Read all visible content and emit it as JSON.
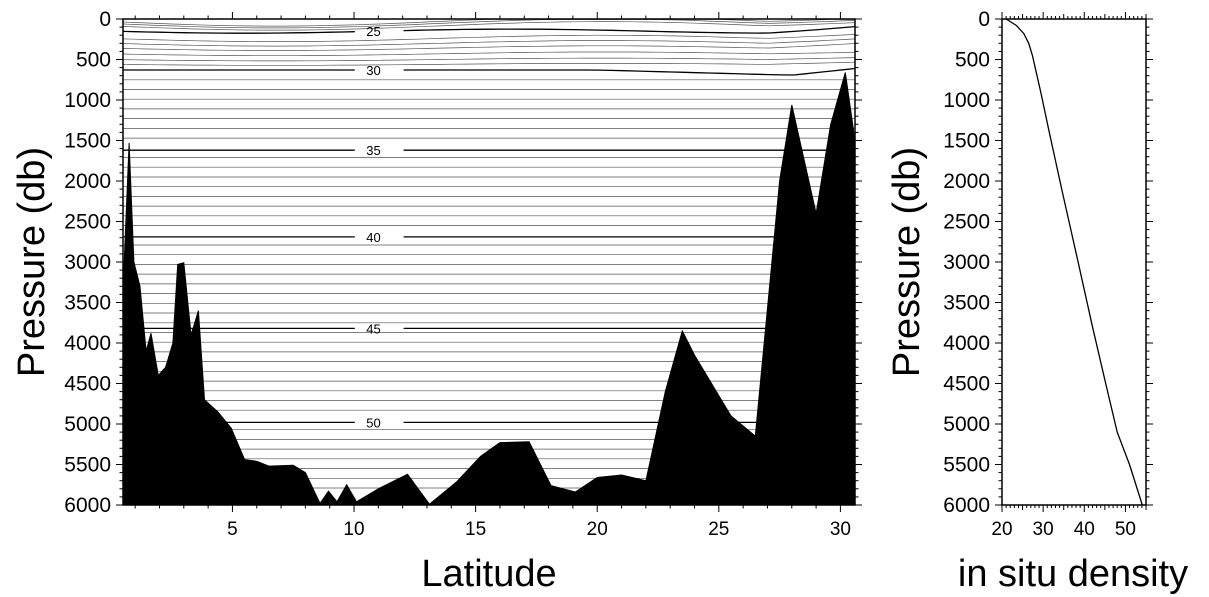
{
  "chart_data": [
    {
      "type": "section",
      "xlabel": "Latitude",
      "ylabel": "Pressure (db)",
      "xlim": [
        0.5,
        30.6
      ],
      "ylim": [
        6000,
        0
      ],
      "x_ticks": [
        5,
        10,
        15,
        20,
        25,
        30
      ],
      "y_ticks": [
        0,
        500,
        1000,
        1500,
        2000,
        2500,
        3000,
        3500,
        4000,
        4500,
        5000,
        5500,
        6000
      ],
      "contour_labels": [
        {
          "label": "25",
          "value": 25,
          "pressure": 150
        },
        {
          "label": "30",
          "value": 30,
          "pressure": 630
        },
        {
          "label": "35",
          "value": 35,
          "pressure": 1620
        },
        {
          "label": "40",
          "value": 40,
          "pressure": 2690
        },
        {
          "label": "45",
          "value": 45,
          "pressure": 3820
        },
        {
          "label": "50",
          "value": 50,
          "pressure": 4980
        }
      ],
      "bottom_profile": [
        {
          "lat": 0.5,
          "p": 6000
        },
        {
          "lat": 0.5,
          "p": 3350
        },
        {
          "lat": 0.75,
          "p": 1530
        },
        {
          "lat": 0.95,
          "p": 3000
        },
        {
          "lat": 1.2,
          "p": 3300
        },
        {
          "lat": 1.45,
          "p": 4100
        },
        {
          "lat": 1.65,
          "p": 3880
        },
        {
          "lat": 1.95,
          "p": 4400
        },
        {
          "lat": 2.25,
          "p": 4300
        },
        {
          "lat": 2.55,
          "p": 4000
        },
        {
          "lat": 2.75,
          "p": 3030
        },
        {
          "lat": 3.0,
          "p": 3010
        },
        {
          "lat": 3.3,
          "p": 3900
        },
        {
          "lat": 3.6,
          "p": 3600
        },
        {
          "lat": 3.85,
          "p": 4700
        },
        {
          "lat": 4.4,
          "p": 4850
        },
        {
          "lat": 4.95,
          "p": 5050
        },
        {
          "lat": 5.5,
          "p": 5440
        },
        {
          "lat": 6.0,
          "p": 5460
        },
        {
          "lat": 6.5,
          "p": 5520
        },
        {
          "lat": 7.5,
          "p": 5510
        },
        {
          "lat": 8.0,
          "p": 5600
        },
        {
          "lat": 8.6,
          "p": 5980
        },
        {
          "lat": 8.95,
          "p": 5830
        },
        {
          "lat": 9.3,
          "p": 5960
        },
        {
          "lat": 9.7,
          "p": 5750
        },
        {
          "lat": 10.1,
          "p": 5960
        },
        {
          "lat": 11.0,
          "p": 5800
        },
        {
          "lat": 12.2,
          "p": 5620
        },
        {
          "lat": 13.1,
          "p": 5990
        },
        {
          "lat": 14.2,
          "p": 5720
        },
        {
          "lat": 15.2,
          "p": 5400
        },
        {
          "lat": 16.0,
          "p": 5230
        },
        {
          "lat": 17.2,
          "p": 5220
        },
        {
          "lat": 18.1,
          "p": 5760
        },
        {
          "lat": 19.1,
          "p": 5840
        },
        {
          "lat": 20.0,
          "p": 5660
        },
        {
          "lat": 21.0,
          "p": 5630
        },
        {
          "lat": 22.0,
          "p": 5700
        },
        {
          "lat": 22.8,
          "p": 4600
        },
        {
          "lat": 23.5,
          "p": 3850
        },
        {
          "lat": 24.0,
          "p": 4150
        },
        {
          "lat": 24.9,
          "p": 4600
        },
        {
          "lat": 25.5,
          "p": 4900
        },
        {
          "lat": 26.5,
          "p": 5150
        },
        {
          "lat": 27.5,
          "p": 2000
        },
        {
          "lat": 28.0,
          "p": 1060
        },
        {
          "lat": 29.0,
          "p": 2400
        },
        {
          "lat": 29.6,
          "p": 1300
        },
        {
          "lat": 30.2,
          "p": 660
        },
        {
          "lat": 30.6,
          "p": 1500
        },
        {
          "lat": 30.6,
          "p": 6000
        }
      ]
    },
    {
      "type": "line",
      "xlabel": "in situ density",
      "ylabel": "Pressure (db)",
      "xlim": [
        20,
        55
      ],
      "ylim": [
        6000,
        0
      ],
      "x_ticks": [
        20,
        30,
        40,
        50
      ],
      "y_ticks": [
        0,
        500,
        1000,
        1500,
        2000,
        2500,
        3000,
        3500,
        4000,
        4500,
        5000,
        5500,
        6000
      ],
      "x": [
        21.0,
        23.5,
        25.3,
        26.5,
        27.4,
        28.3,
        29.4,
        31.5,
        34.5,
        38.5,
        42.0,
        45.2,
        48.0,
        51.0,
        54.1
      ],
      "y": [
        0,
        80,
        180,
        300,
        450,
        650,
        900,
        1400,
        2100,
        3000,
        3800,
        4500,
        5100,
        5500,
        6000
      ]
    }
  ]
}
